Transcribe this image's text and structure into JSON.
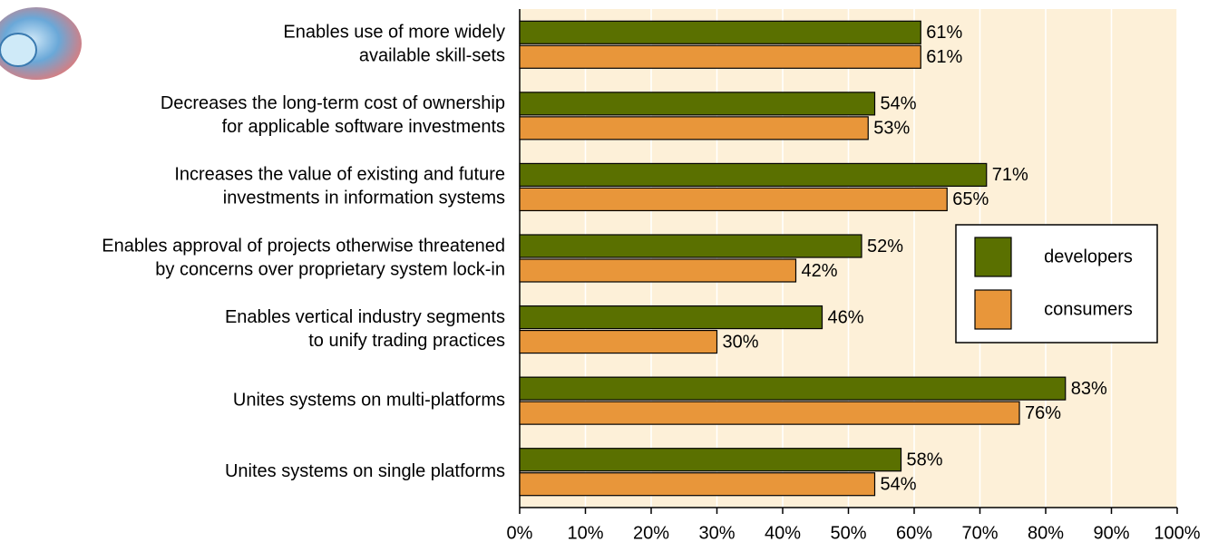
{
  "chart_data": {
    "type": "hbar",
    "categories": [
      [
        "Enables use of more widely",
        "available skill-sets"
      ],
      [
        "Decreases the long-term cost of ownership",
        "for applicable software investments"
      ],
      [
        "Increases the value of existing and future",
        "investments in information systems"
      ],
      [
        "Enables approval of projects otherwise threatened",
        "by concerns over proprietary system lock-in"
      ],
      [
        "Enables vertical industry segments",
        "to unify trading practices"
      ],
      [
        "Unites systems on multi-platforms"
      ],
      [
        "Unites systems on single platforms"
      ]
    ],
    "series": [
      {
        "name": "developers",
        "color": "#5a7000",
        "values": [
          61,
          54,
          71,
          52,
          46,
          83,
          58
        ],
        "value_labels": [
          "61%",
          "54%",
          "71%",
          "52%",
          "46%",
          "83%",
          "58%"
        ]
      },
      {
        "name": "consumers",
        "color": "#e8963a",
        "values": [
          61,
          53,
          65,
          42,
          30,
          76,
          54
        ],
        "value_labels": [
          "61%",
          "53%",
          "65%",
          "42%",
          "30%",
          "76%",
          "54%"
        ]
      }
    ],
    "xlim": [
      0,
      100
    ],
    "xticks": [
      {
        "value": 0,
        "label": "0%"
      },
      {
        "value": 10,
        "label": "10%"
      },
      {
        "value": 20,
        "label": "20%"
      },
      {
        "value": 30,
        "label": "30%"
      },
      {
        "value": 40,
        "label": "40%"
      },
      {
        "value": 50,
        "label": "50%"
      },
      {
        "value": 60,
        "label": "60%"
      },
      {
        "value": 70,
        "label": "70%"
      },
      {
        "value": 80,
        "label": "80%"
      },
      {
        "value": 90,
        "label": "90%"
      },
      {
        "value": 100,
        "label": "100%"
      }
    ],
    "grid": true,
    "legend": "right"
  }
}
